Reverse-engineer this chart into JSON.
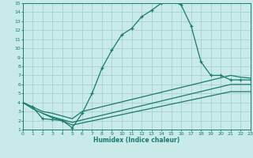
{
  "xlabel": "Humidex (Indice chaleur)",
  "xlim": [
    0,
    23
  ],
  "ylim": [
    1,
    15
  ],
  "xticks": [
    0,
    1,
    2,
    3,
    4,
    5,
    6,
    7,
    8,
    9,
    10,
    11,
    12,
    13,
    14,
    15,
    16,
    17,
    18,
    19,
    20,
    21,
    22,
    23
  ],
  "yticks": [
    1,
    2,
    3,
    4,
    5,
    6,
    7,
    8,
    9,
    10,
    11,
    12,
    13,
    14,
    15
  ],
  "bg_color": "#c8eae8",
  "grid_color": "#a8d0cc",
  "line_color": "#1a7a6e",
  "curve1_x": [
    0,
    1,
    2,
    3,
    4,
    5,
    6,
    7,
    8,
    9,
    10,
    11,
    12,
    13,
    14,
    15,
    16,
    17,
    18,
    19,
    20,
    21,
    22,
    23
  ],
  "curve1_y": [
    4.0,
    3.5,
    2.2,
    2.1,
    2.0,
    1.2,
    2.8,
    5.0,
    7.8,
    9.8,
    11.5,
    12.2,
    13.5,
    14.2,
    15.0,
    15.3,
    14.8,
    12.5,
    8.5,
    7.0,
    7.0,
    6.5,
    6.5,
    6.5
  ],
  "curve2_x": [
    0,
    1,
    2,
    3,
    4,
    5,
    6,
    21,
    22,
    23
  ],
  "curve2_y": [
    4.0,
    3.5,
    3.0,
    2.8,
    2.5,
    2.2,
    3.0,
    7.0,
    6.8,
    6.7
  ],
  "curve3_x": [
    0,
    1,
    2,
    3,
    4,
    5,
    21,
    22,
    23
  ],
  "curve3_y": [
    4.0,
    3.3,
    2.8,
    2.4,
    2.1,
    1.8,
    6.0,
    6.0,
    6.0
  ],
  "curve4_x": [
    2,
    3,
    4,
    5,
    21,
    22,
    23
  ],
  "curve4_y": [
    2.8,
    2.3,
    2.0,
    1.5,
    5.2,
    5.2,
    5.2
  ]
}
